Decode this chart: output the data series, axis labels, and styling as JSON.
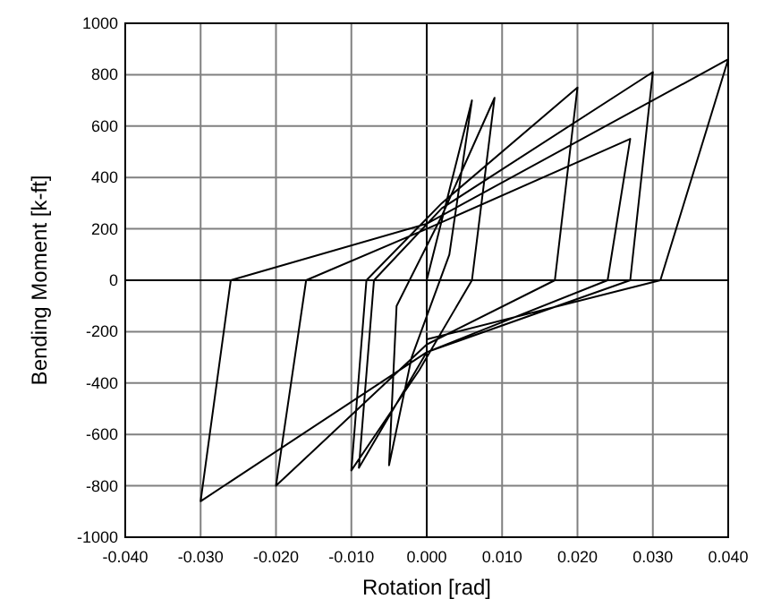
{
  "chart_data": {
    "type": "line",
    "xlabel": "Rotation [rad]",
    "ylabel": "Bending Moment [k-ft]",
    "xlim": [
      -0.04,
      0.04
    ],
    "ylim": [
      -1000,
      1000
    ],
    "xticks": [
      {
        "value": -0.04,
        "label": "-0.040"
      },
      {
        "value": -0.03,
        "label": "-0.030"
      },
      {
        "value": -0.02,
        "label": "-0.020"
      },
      {
        "value": -0.01,
        "label": "-0.010"
      },
      {
        "value": 0,
        "label": "0.000"
      },
      {
        "value": 0.01,
        "label": "0.010"
      },
      {
        "value": 0.02,
        "label": "0.020"
      },
      {
        "value": 0.03,
        "label": "0.030"
      },
      {
        "value": 0.04,
        "label": "0.040"
      }
    ],
    "yticks": [
      -1000,
      -800,
      -600,
      -400,
      -200,
      0,
      200,
      400,
      600,
      800,
      1000
    ],
    "grid": true,
    "marker": "none",
    "line_style": "solid",
    "series": [
      {
        "color": "#000000",
        "x": [
          0,
          0.006,
          0.003,
          -0.002,
          -0.005,
          -0.004,
          0.002,
          0.009,
          0.006,
          -0.001,
          -0.01,
          -0.008,
          0.002,
          0.02,
          0.017,
          0,
          -0.02,
          -0.016,
          0,
          0.027,
          0.024,
          0,
          -0.009,
          -0.007,
          0.002,
          0.03,
          0.027,
          0,
          -0.03,
          -0.026,
          0,
          0.04,
          0.031,
          0
        ],
        "values": [
          0,
          700,
          100,
          -300,
          -720,
          -100,
          250,
          710,
          0,
          -350,
          -740,
          0,
          300,
          750,
          0,
          -250,
          -800,
          0,
          200,
          550,
          0,
          -280,
          -730,
          0,
          280,
          810,
          0,
          -280,
          -860,
          0,
          220,
          860,
          0,
          -230
        ]
      }
    ]
  }
}
